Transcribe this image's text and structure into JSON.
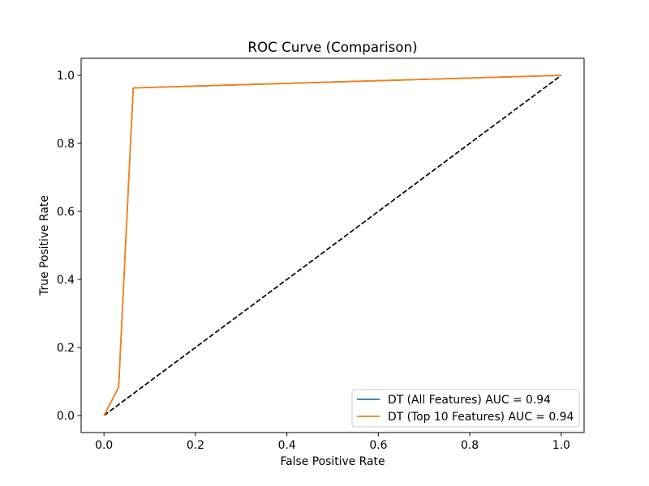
{
  "chart_data": {
    "type": "line",
    "title": "ROC Curve (Comparison)",
    "xlabel": "False Positive Rate",
    "ylabel": "True Positive Rate",
    "xlim": [
      -0.05,
      1.05
    ],
    "ylim": [
      -0.05,
      1.05
    ],
    "grid": false,
    "legend_position": "lower-right",
    "x_ticks": [
      0.0,
      0.2,
      0.4,
      0.6,
      0.8,
      1.0
    ],
    "x_tick_labels": [
      "0.0",
      "0.2",
      "0.4",
      "0.6",
      "0.8",
      "1.0"
    ],
    "y_ticks": [
      0.0,
      0.2,
      0.4,
      0.6,
      0.8,
      1.0
    ],
    "y_tick_labels": [
      "0.0",
      "0.2",
      "0.4",
      "0.6",
      "0.8",
      "1.0"
    ],
    "series": [
      {
        "name": "DT (All Features) AUC = 0.94",
        "color": "#1f77b4",
        "style": "solid",
        "x": [
          0.0,
          0.032,
          0.064,
          1.0
        ],
        "y": [
          0.0,
          0.083,
          0.963,
          1.0
        ]
      },
      {
        "name": "DT (Top 10 Features) AUC = 0.94",
        "color": "#ff7f0e",
        "style": "solid",
        "x": [
          0.0,
          0.032,
          0.064,
          1.0
        ],
        "y": [
          0.0,
          0.083,
          0.963,
          1.0
        ]
      },
      {
        "color": "#000000",
        "style": "dashed",
        "x": [
          0.0,
          1.0
        ],
        "y": [
          0.0,
          1.0
        ]
      }
    ]
  }
}
